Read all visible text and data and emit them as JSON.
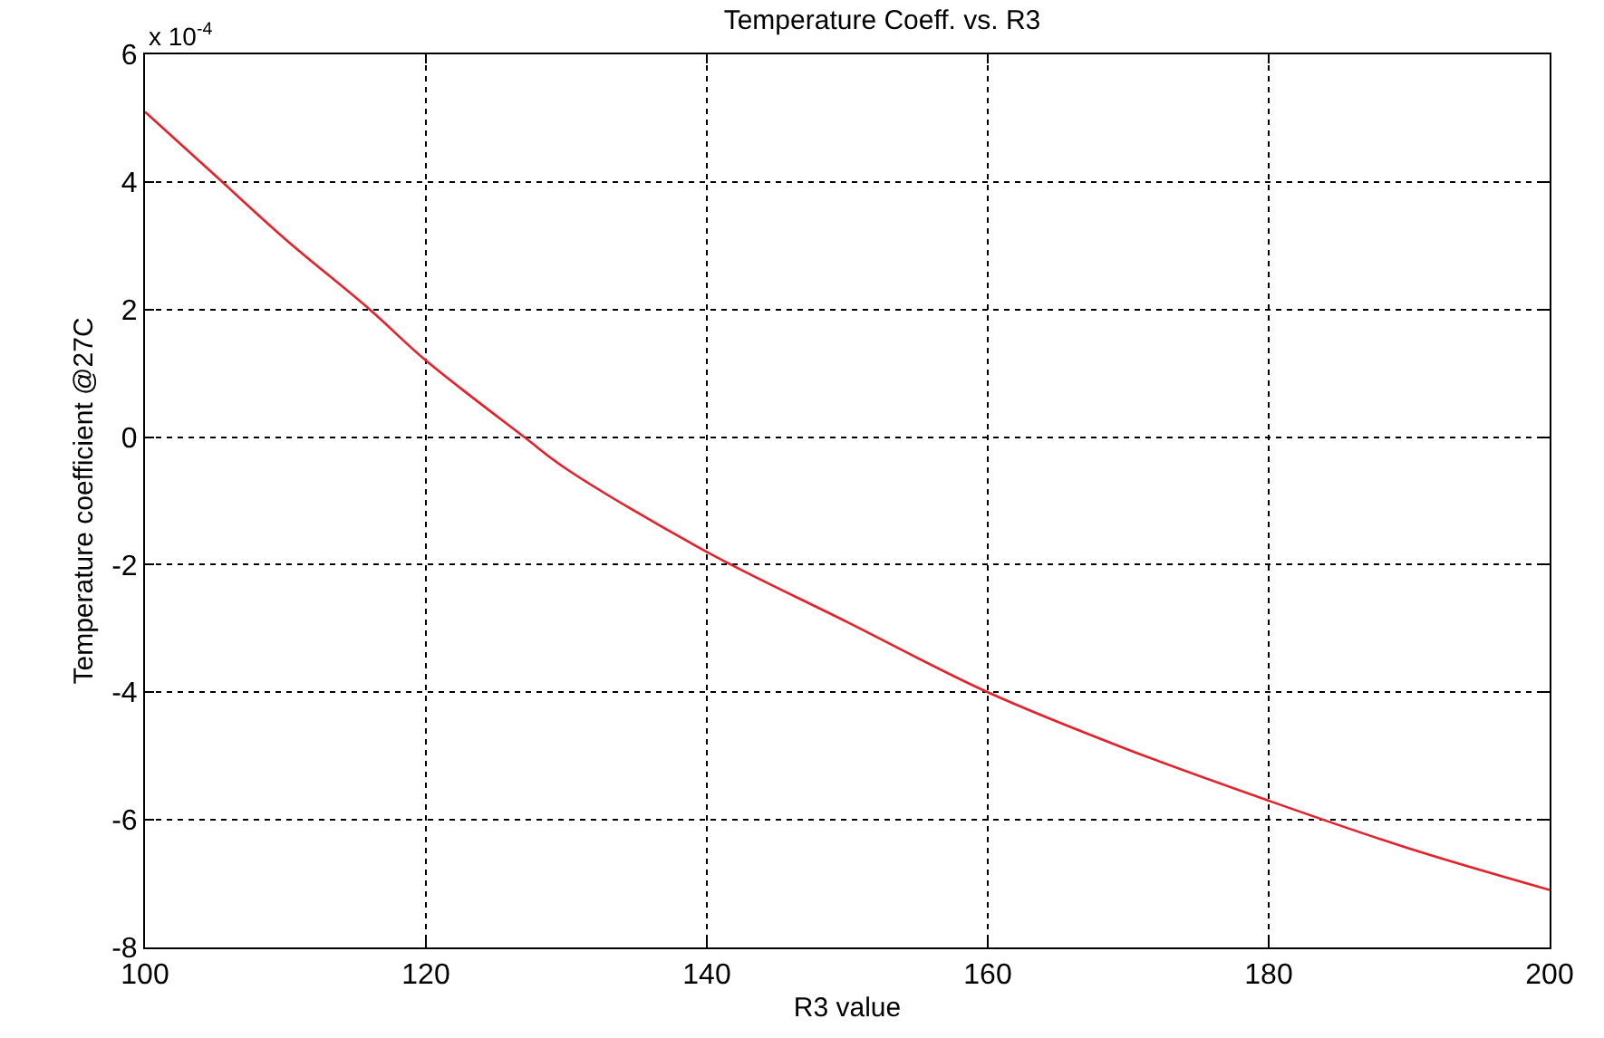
{
  "chart_data": {
    "type": "line",
    "title": "Temperature Coeff. vs. R3",
    "xlabel": "R3 value",
    "ylabel": "Temperature coefficient @27C",
    "annotations": [
      "x 10$^{-4}$"
    ],
    "x": [
      100,
      105,
      110,
      116,
      120,
      127,
      130,
      140,
      150,
      160,
      170,
      180,
      190,
      200
    ],
    "series": [
      {
        "color": "#e8202a",
        "values": [
          5.1,
          4.1,
          3.1,
          2.0,
          1.2,
          0.0,
          -0.5,
          -1.8,
          -2.9,
          -4.0,
          -4.9,
          -5.7,
          -6.45,
          -7.1
        ]
      }
    ],
    "xlim": [
      100,
      200
    ],
    "xticks": [
      100,
      120,
      140,
      160,
      180,
      200
    ],
    "ylim": [
      -8,
      6
    ],
    "yticks": [
      -8,
      -6,
      -4,
      -2,
      0,
      2,
      4,
      6
    ],
    "grid": true,
    "line_style": "solid",
    "marker": "none",
    "legend": false
  }
}
